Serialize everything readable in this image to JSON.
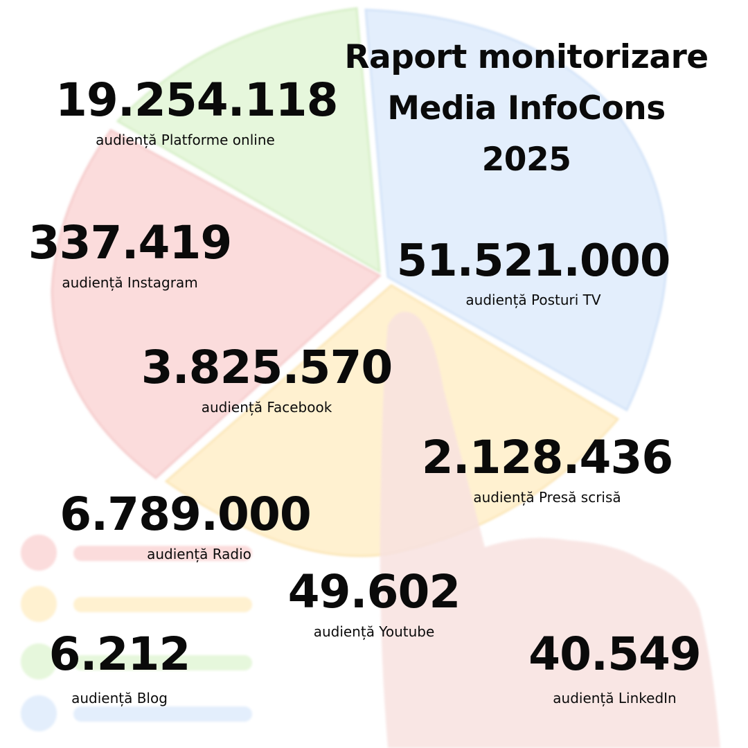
{
  "title": {
    "line1": "Raport monitorizare",
    "line2": "Media InfoCons",
    "line3": "2025"
  },
  "stats": {
    "online": {
      "value": "19.254.118",
      "label": "audiență Platforme online"
    },
    "instagram": {
      "value": "337.419",
      "label": "audiență Instagram"
    },
    "tv": {
      "value": "51.521.000",
      "label": "audiență Posturi TV"
    },
    "facebook": {
      "value": "3.825.570",
      "label": "audiență Facebook"
    },
    "presa": {
      "value": "2.128.436",
      "label": "audiență Presă scrisă"
    },
    "radio": {
      "value": "6.789.000",
      "label": "audiență Radio"
    },
    "youtube": {
      "value": "49.602",
      "label": "audiență Youtube"
    },
    "blog": {
      "value": "6.212",
      "label": "audiență Blog"
    },
    "linkedin": {
      "value": "40.549",
      "label": "audiență LinkedIn"
    }
  },
  "colors": {
    "text": "#0a0a0a",
    "green_slice": "#e6f7dc",
    "blue_slice": "#e3eefc",
    "red_slice": "#fbdcdc",
    "yellow_slice": "#fff1d0",
    "hand": "#f8e2e0"
  },
  "icons": [
    "pie-chart-illustration",
    "pointing-hand-illustration",
    "legend-dots-illustration"
  ]
}
